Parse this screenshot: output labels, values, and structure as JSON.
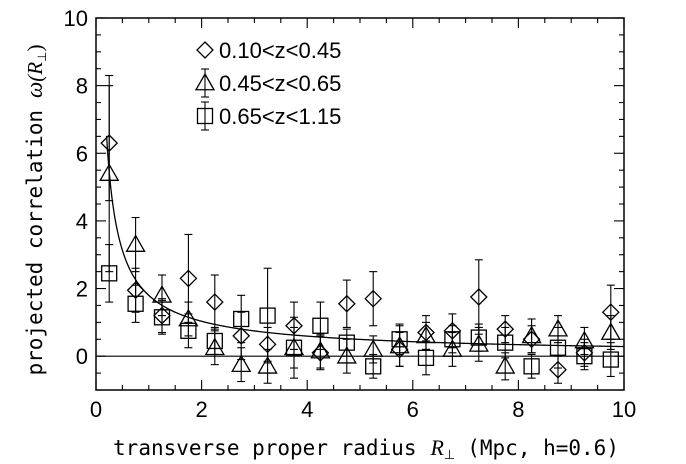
{
  "chart_data": {
    "type": "scatter",
    "xlabel": "transverse proper radius",
    "xlabel_symbol": "R",
    "xlabel_subscript": "⊥",
    "xlabel_units": "(Mpc, h=0.6)",
    "ylabel": "projected correlation",
    "ylabel_symbol": "ω",
    "ylabel_arg": "(R",
    "ylabel_subscript": "⊥",
    "ylabel_close": ")",
    "xlim": [
      0,
      10
    ],
    "ylim": [
      -1,
      10
    ],
    "xticks": [
      "0",
      "2",
      "4",
      "6",
      "8",
      "10"
    ],
    "yticks": [
      "0",
      "2",
      "4",
      "6",
      "8",
      "10"
    ],
    "xtick_values": [
      0,
      2,
      4,
      6,
      8,
      10
    ],
    "ytick_values": [
      0,
      2,
      4,
      6,
      8,
      10
    ],
    "legend_position": "top-left",
    "series": [
      {
        "name": "0.10<z<0.45",
        "marker": "diamond",
        "points": [
          {
            "x": 0.25,
            "y": 6.3,
            "err": 1.7
          },
          {
            "x": 0.75,
            "y": 1.95,
            "err": 0.65
          },
          {
            "x": 1.25,
            "y": 1.2,
            "err": 0.5
          },
          {
            "x": 1.75,
            "y": 2.3,
            "err": 1.3
          },
          {
            "x": 2.25,
            "y": 1.6,
            "err": 0.8
          },
          {
            "x": 2.75,
            "y": 0.6,
            "err": 0.7
          },
          {
            "x": 3.25,
            "y": 0.35,
            "err": 0.5
          },
          {
            "x": 3.75,
            "y": 0.9,
            "err": 0.7
          },
          {
            "x": 4.25,
            "y": 0.1,
            "err": 0.5
          },
          {
            "x": 4.75,
            "y": 1.55,
            "err": 0.7
          },
          {
            "x": 5.25,
            "y": 1.7,
            "err": 0.8
          },
          {
            "x": 5.75,
            "y": 0.2,
            "err": 0.5
          },
          {
            "x": 6.25,
            "y": 0.7,
            "err": 0.5
          },
          {
            "x": 6.75,
            "y": 0.75,
            "err": 0.5
          },
          {
            "x": 7.25,
            "y": 1.75,
            "err": 1.1
          },
          {
            "x": 7.75,
            "y": 0.8,
            "err": 0.4
          },
          {
            "x": 8.25,
            "y": 0.5,
            "err": 0.4
          },
          {
            "x": 8.75,
            "y": -0.4,
            "err": 0.4
          },
          {
            "x": 9.25,
            "y": 0.1,
            "err": 0.4
          },
          {
            "x": 9.75,
            "y": 1.3,
            "err": 0.8
          }
        ]
      },
      {
        "name": "0.45<z<0.65",
        "marker": "triangle",
        "points": [
          {
            "x": 0.25,
            "y": 5.4,
            "err": 2.9
          },
          {
            "x": 0.75,
            "y": 3.3,
            "err": 0.8
          },
          {
            "x": 1.25,
            "y": 1.8,
            "err": 0.6
          },
          {
            "x": 1.75,
            "y": 1.1,
            "err": 0.5
          },
          {
            "x": 2.25,
            "y": 0.25,
            "err": 0.5
          },
          {
            "x": 2.75,
            "y": -0.25,
            "err": 0.5
          },
          {
            "x": 3.25,
            "y": -0.3,
            "err": 0.5
          },
          {
            "x": 3.75,
            "y": 0.25,
            "err": 0.6
          },
          {
            "x": 4.25,
            "y": 0.15,
            "err": 0.5
          },
          {
            "x": 4.75,
            "y": 0.0,
            "err": 0.5
          },
          {
            "x": 5.25,
            "y": 0.2,
            "err": 0.4
          },
          {
            "x": 5.75,
            "y": 0.3,
            "err": 0.6
          },
          {
            "x": 6.25,
            "y": 0.6,
            "err": 0.4
          },
          {
            "x": 6.75,
            "y": 0.2,
            "err": 0.5
          },
          {
            "x": 7.25,
            "y": 0.35,
            "err": 0.5
          },
          {
            "x": 7.75,
            "y": -0.3,
            "err": 0.4
          },
          {
            "x": 8.25,
            "y": 0.6,
            "err": 0.5
          },
          {
            "x": 8.75,
            "y": 0.8,
            "err": 0.4
          },
          {
            "x": 9.25,
            "y": 0.45,
            "err": 0.4
          },
          {
            "x": 9.75,
            "y": 0.7,
            "err": 0.5
          }
        ]
      },
      {
        "name": "0.65<z<1.15",
        "marker": "square",
        "points": [
          {
            "x": 0.25,
            "y": 2.45,
            "err": 0.85
          },
          {
            "x": 0.75,
            "y": 1.55,
            "err": 0.55
          },
          {
            "x": 1.25,
            "y": 1.15,
            "err": 0.5
          },
          {
            "x": 1.75,
            "y": 0.75,
            "err": 0.5
          },
          {
            "x": 2.25,
            "y": 0.45,
            "err": 0.4
          },
          {
            "x": 2.75,
            "y": 1.1,
            "err": 0.7
          },
          {
            "x": 3.25,
            "y": 1.2,
            "err": 1.4
          },
          {
            "x": 3.75,
            "y": 0.25,
            "err": 0.9
          },
          {
            "x": 4.25,
            "y": 0.9,
            "err": 0.7
          },
          {
            "x": 4.75,
            "y": 0.4,
            "err": 0.4
          },
          {
            "x": 5.25,
            "y": -0.3,
            "err": 0.35
          },
          {
            "x": 5.75,
            "y": 0.5,
            "err": 0.45
          },
          {
            "x": 6.25,
            "y": -0.05,
            "err": 0.5
          },
          {
            "x": 6.75,
            "y": 0.5,
            "err": 0.4
          },
          {
            "x": 7.25,
            "y": 0.55,
            "err": 0.4
          },
          {
            "x": 7.75,
            "y": 0.4,
            "err": 0.45
          },
          {
            "x": 8.25,
            "y": -0.3,
            "err": 0.35
          },
          {
            "x": 8.75,
            "y": 0.25,
            "err": 0.6
          },
          {
            "x": 9.25,
            "y": 0.0,
            "err": 0.4
          },
          {
            "x": 9.75,
            "y": -0.1,
            "err": 0.5
          }
        ]
      }
    ],
    "fit_curve": {
      "form": "power_law",
      "gamma": 0.8,
      "amplitude_at_0.25": 5.45
    }
  }
}
